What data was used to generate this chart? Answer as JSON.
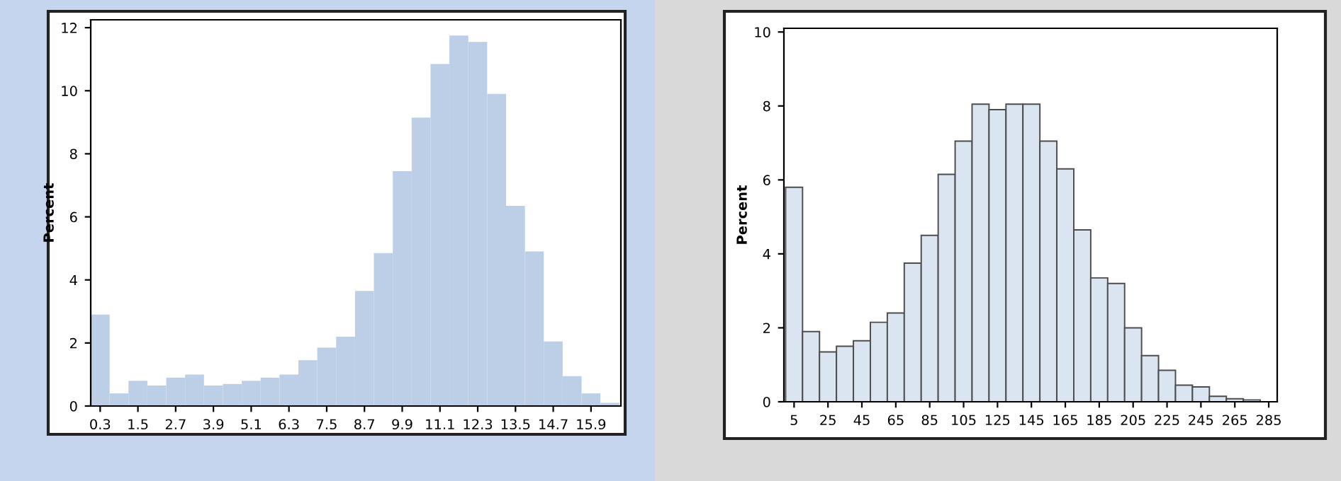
{
  "chart_data": [
    {
      "type": "histogram",
      "ylabel": "Percent",
      "color": "#bccfe7",
      "bins": [
        0,
        0.6,
        1.2,
        1.8,
        2.4,
        3.0,
        3.6,
        4.2,
        4.8,
        5.4,
        6.0,
        6.6,
        7.2,
        7.8,
        8.4,
        9.0,
        9.6,
        10.2,
        10.8,
        11.4,
        12.0,
        12.6,
        13.2,
        13.8,
        14.4,
        15.0,
        15.6,
        16.2,
        16.8
      ],
      "values": [
        2.9,
        0.4,
        0.8,
        0.65,
        0.9,
        1.0,
        0.65,
        0.7,
        0.8,
        0.9,
        1.0,
        1.45,
        1.85,
        2.2,
        3.65,
        4.85,
        7.45,
        9.15,
        10.85,
        11.75,
        11.55,
        9.9,
        6.35,
        4.9,
        2.05,
        0.95,
        0.4,
        0.1
      ],
      "xlim": [
        0,
        16.85
      ],
      "ylim": [
        0,
        12.25
      ],
      "xticks": [
        0.3,
        1.5,
        2.7,
        3.9,
        5.1,
        6.3,
        7.5,
        8.7,
        9.9,
        11.1,
        12.3,
        13.5,
        14.7,
        15.9
      ],
      "yticks": [
        0,
        2,
        4,
        6,
        8,
        10,
        12
      ],
      "grid": false,
      "legend": false
    },
    {
      "type": "histogram",
      "ylabel": "Percent",
      "color": "#dae5f1",
      "bins": [
        0,
        10,
        20,
        30,
        40,
        50,
        60,
        70,
        80,
        90,
        100,
        110,
        120,
        130,
        140,
        150,
        160,
        170,
        180,
        190,
        200,
        210,
        220,
        230,
        240,
        250,
        260,
        270,
        280
      ],
      "values": [
        5.8,
        1.9,
        1.35,
        1.5,
        1.65,
        2.15,
        2.4,
        3.75,
        4.5,
        6.15,
        7.05,
        8.05,
        7.9,
        8.05,
        8.05,
        7.05,
        6.3,
        4.65,
        3.35,
        3.2,
        2.0,
        1.25,
        0.85,
        0.45,
        0.4,
        0.15,
        0.08,
        0.05
      ],
      "xlim": [
        -1,
        290
      ],
      "ylim": [
        0,
        10.1
      ],
      "xticks": [
        5,
        25,
        45,
        65,
        85,
        105,
        125,
        145,
        165,
        185,
        205,
        225,
        245,
        265,
        285
      ],
      "yticks": [
        0,
        2,
        4,
        6,
        8,
        10
      ],
      "grid": false,
      "legend": false
    }
  ]
}
